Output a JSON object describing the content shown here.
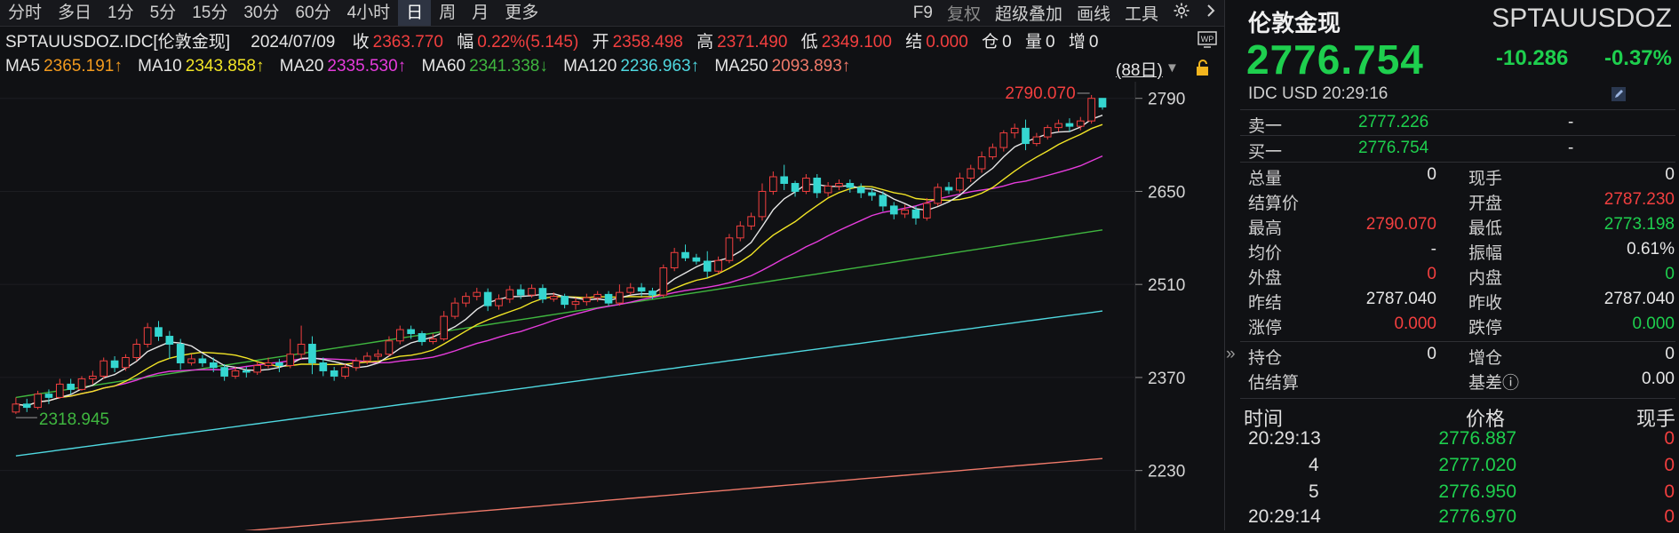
{
  "toolbar": {
    "tabs": [
      "分时",
      "多日",
      "1分",
      "5分",
      "15分",
      "30分",
      "60分",
      "4小时",
      "日",
      "周",
      "月",
      "更多"
    ],
    "active_index": 8,
    "right": [
      "F9",
      "复权",
      "超级叠加",
      "画线",
      "工具"
    ]
  },
  "info": {
    "symbol": "SPTAUUSDOZ.IDC[伦敦金现]",
    "date": "2024/07/09",
    "close_label": "收",
    "close": "2363.770",
    "chg_label": "幅",
    "chg": "0.22%(5.145)",
    "open_label": "开",
    "open": "2358.498",
    "high_label": "高",
    "high": "2371.490",
    "low_label": "低",
    "low": "2349.100",
    "settle_label": "结",
    "settle": "0.000",
    "oi_label": "仓",
    "oi": "0",
    "vol_label": "量",
    "vol": "0",
    "inc_label": "增",
    "inc": "0"
  },
  "ma": {
    "ma5": "MA5",
    "ma5_v": "2365.191↑",
    "ma10": "MA10",
    "ma10_v": "2343.858↑",
    "ma20": "MA20",
    "ma20_v": "2335.530↑",
    "ma60": "MA60",
    "ma60_v": "2341.338↓",
    "ma120": "MA120",
    "ma120_v": "2236.963↑",
    "ma250": "MA250",
    "ma250_v": "2093.893↑",
    "period": "(88日)"
  },
  "colors": {
    "up": "#f23f3f",
    "down": "#35d6d0",
    "ma5": "#e6e6e6",
    "ma10": "#f2e526",
    "ma20": "#e63cdc",
    "ma60": "#3fb63f",
    "ma120": "#4fd8e0",
    "ma250": "#f07a6a"
  },
  "chart_data": {
    "type": "candlestick",
    "yticks": [
      2790,
      2650,
      2510,
      2370,
      2230
    ],
    "ylim": [
      2140,
      2815
    ],
    "high_label": "2790.070",
    "low_label": "2318.945",
    "candles": [
      [
        2318,
        2330,
        2315,
        2340
      ],
      [
        2330,
        2325,
        2318,
        2338
      ],
      [
        2325,
        2345,
        2322,
        2350
      ],
      [
        2345,
        2340,
        2330,
        2352
      ],
      [
        2340,
        2360,
        2338,
        2368
      ],
      [
        2360,
        2352,
        2345,
        2368
      ],
      [
        2352,
        2368,
        2350,
        2372
      ],
      [
        2368,
        2372,
        2360,
        2380
      ],
      [
        2372,
        2395,
        2368,
        2400
      ],
      [
        2395,
        2385,
        2378,
        2402
      ],
      [
        2385,
        2400,
        2380,
        2405
      ],
      [
        2400,
        2420,
        2395,
        2428
      ],
      [
        2420,
        2445,
        2415,
        2452
      ],
      [
        2445,
        2432,
        2425,
        2455
      ],
      [
        2432,
        2420,
        2398,
        2440
      ],
      [
        2420,
        2392,
        2382,
        2428
      ],
      [
        2392,
        2398,
        2388,
        2405
      ],
      [
        2398,
        2392,
        2386,
        2404
      ],
      [
        2392,
        2385,
        2378,
        2400
      ],
      [
        2385,
        2372,
        2365,
        2390
      ],
      [
        2372,
        2380,
        2368,
        2386
      ],
      [
        2380,
        2378,
        2370,
        2386
      ],
      [
        2378,
        2388,
        2374,
        2394
      ],
      [
        2388,
        2392,
        2384,
        2400
      ],
      [
        2392,
        2388,
        2378,
        2398
      ],
      [
        2388,
        2405,
        2384,
        2428
      ],
      [
        2405,
        2420,
        2398,
        2448
      ],
      [
        2420,
        2392,
        2375,
        2432
      ],
      [
        2392,
        2380,
        2372,
        2400
      ],
      [
        2380,
        2372,
        2365,
        2386
      ],
      [
        2372,
        2385,
        2368,
        2390
      ],
      [
        2385,
        2395,
        2380,
        2400
      ],
      [
        2395,
        2402,
        2390,
        2408
      ],
      [
        2402,
        2405,
        2396,
        2412
      ],
      [
        2405,
        2425,
        2402,
        2432
      ],
      [
        2425,
        2442,
        2420,
        2448
      ],
      [
        2442,
        2436,
        2428,
        2448
      ],
      [
        2436,
        2424,
        2418,
        2440
      ],
      [
        2424,
        2428,
        2420,
        2436
      ],
      [
        2428,
        2462,
        2425,
        2470
      ],
      [
        2462,
        2482,
        2458,
        2490
      ],
      [
        2482,
        2492,
        2476,
        2498
      ],
      [
        2492,
        2498,
        2486,
        2505
      ],
      [
        2498,
        2478,
        2470,
        2504
      ],
      [
        2478,
        2488,
        2472,
        2495
      ],
      [
        2488,
        2502,
        2482,
        2508
      ],
      [
        2502,
        2494,
        2488,
        2510
      ],
      [
        2494,
        2504,
        2490,
        2510
      ],
      [
        2504,
        2488,
        2482,
        2510
      ],
      [
        2488,
        2492,
        2484,
        2498
      ],
      [
        2492,
        2480,
        2474,
        2496
      ],
      [
        2480,
        2484,
        2472,
        2490
      ],
      [
        2484,
        2490,
        2478,
        2496
      ],
      [
        2490,
        2495,
        2484,
        2500
      ],
      [
        2495,
        2482,
        2478,
        2500
      ],
      [
        2482,
        2498,
        2478,
        2510
      ],
      [
        2498,
        2505,
        2494,
        2512
      ],
      [
        2505,
        2500,
        2492,
        2512
      ],
      [
        2500,
        2494,
        2488,
        2505
      ],
      [
        2494,
        2535,
        2490,
        2540
      ],
      [
        2535,
        2558,
        2530,
        2565
      ],
      [
        2558,
        2550,
        2545,
        2570
      ],
      [
        2550,
        2545,
        2540,
        2556
      ],
      [
        2545,
        2530,
        2520,
        2560
      ],
      [
        2530,
        2546,
        2526,
        2552
      ],
      [
        2546,
        2580,
        2542,
        2586
      ],
      [
        2580,
        2598,
        2575,
        2605
      ],
      [
        2598,
        2612,
        2592,
        2618
      ],
      [
        2612,
        2650,
        2606,
        2662
      ],
      [
        2650,
        2672,
        2645,
        2680
      ],
      [
        2672,
        2662,
        2652,
        2690
      ],
      [
        2662,
        2650,
        2642,
        2666
      ],
      [
        2650,
        2670,
        2646,
        2676
      ],
      [
        2670,
        2648,
        2640,
        2676
      ],
      [
        2648,
        2658,
        2642,
        2664
      ],
      [
        2658,
        2662,
        2652,
        2668
      ],
      [
        2662,
        2656,
        2648,
        2668
      ],
      [
        2656,
        2648,
        2640,
        2662
      ],
      [
        2648,
        2644,
        2636,
        2655
      ],
      [
        2644,
        2628,
        2620,
        2650
      ],
      [
        2628,
        2616,
        2608,
        2634
      ],
      [
        2616,
        2622,
        2610,
        2630
      ],
      [
        2622,
        2610,
        2600,
        2628
      ],
      [
        2610,
        2632,
        2606,
        2640
      ],
      [
        2632,
        2656,
        2628,
        2662
      ],
      [
        2656,
        2652,
        2646,
        2664
      ],
      [
        2652,
        2670,
        2648,
        2678
      ],
      [
        2670,
        2684,
        2664,
        2690
      ],
      [
        2684,
        2702,
        2678,
        2710
      ],
      [
        2702,
        2716,
        2698,
        2722
      ],
      [
        2716,
        2738,
        2710,
        2742
      ],
      [
        2738,
        2745,
        2730,
        2752
      ],
      [
        2745,
        2722,
        2712,
        2758
      ],
      [
        2722,
        2732,
        2718,
        2738
      ],
      [
        2732,
        2746,
        2728,
        2750
      ],
      [
        2746,
        2752,
        2740,
        2758
      ],
      [
        2752,
        2748,
        2740,
        2760
      ],
      [
        2748,
        2756,
        2742,
        2762
      ],
      [
        2756,
        2790,
        2752,
        2795
      ],
      [
        2790,
        2777,
        2773,
        2790
      ]
    ]
  },
  "quote": {
    "name": "伦敦金现",
    "code": "SPTAUUSDOZ",
    "price": "2776.754",
    "chg": "-10.286",
    "pct": "-0.37%",
    "meta": "IDC  USD  20:29:16",
    "ask_label": "卖一",
    "ask": "2777.226",
    "ask_vol": "-",
    "bid_label": "买一",
    "bid": "2776.754",
    "bid_vol": "-",
    "rows": [
      {
        "l1": "总量",
        "v1": "0",
        "l2": "现手",
        "v2": "0"
      },
      {
        "l1": "结算价",
        "v1": "",
        "l2": "开盘",
        "v2": "2787.230"
      },
      {
        "l1": "最高",
        "v1": "2790.070",
        "l2": "最低",
        "v2": "2773.198"
      },
      {
        "l1": "均价",
        "v1": "-",
        "l2": "振幅",
        "v2": "0.61%"
      },
      {
        "l1": "外盘",
        "v1": "0",
        "l2": "内盘",
        "v2": "0"
      },
      {
        "l1": "昨结",
        "v1": "2787.040",
        "l2": "昨收",
        "v2": "2787.040"
      },
      {
        "l1": "涨停",
        "v1": "0.000",
        "l2": "跌停",
        "v2": "0.000"
      },
      {
        "l1": "持仓",
        "v1": "0",
        "l2": "增仓",
        "v2": "0"
      },
      {
        "l1": "估结算",
        "v1": "",
        "l2": "基差ⓘ",
        "v2": "0.00"
      }
    ],
    "ticks_header": {
      "time": "时间",
      "price": "价格",
      "vol": "现手"
    },
    "ticks": [
      {
        "t": "20:29:13",
        "p": "2776.887",
        "v": "0"
      },
      {
        "t": "4",
        "p": "2777.020",
        "v": "0"
      },
      {
        "t": "5",
        "p": "2776.950",
        "v": "0"
      },
      {
        "t": "20:29:14",
        "p": "2776.970",
        "v": "0"
      }
    ]
  }
}
